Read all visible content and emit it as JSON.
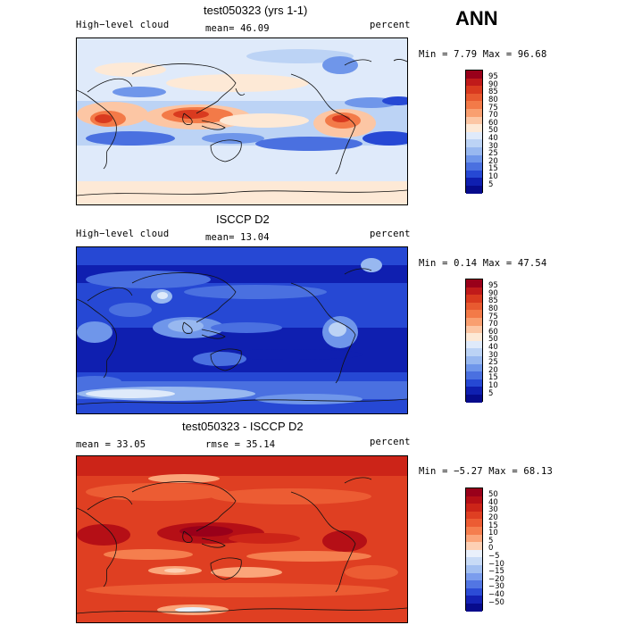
{
  "ann_label": "ANN",
  "panels": [
    {
      "title": "test050323 (yrs 1-1)",
      "left_label": "High−level cloud",
      "center_label": "mean=  46.09",
      "right_label": "percent",
      "minmax": "Min =   7.79 Max =  96.68",
      "colorbar_labels": [
        "95",
        "90",
        "85",
        "80",
        "75",
        "70",
        "60",
        "50",
        "40",
        "30",
        "25",
        "20",
        "15",
        "10",
        "5"
      ],
      "colorbar_colors": [
        "#99001a",
        "#c01a1a",
        "#d93a1f",
        "#e85a30",
        "#f37a48",
        "#f99f70",
        "#fcc6a4",
        "#fde9d6",
        "#dfeafa",
        "#bcd3f5",
        "#98b8f0",
        "#6f96ea",
        "#4a70e0",
        "#2648d4",
        "#0f1fb0",
        "#060b8c"
      ]
    },
    {
      "title": "ISCCP D2",
      "left_label": "High−level cloud",
      "center_label": "mean=  13.04",
      "right_label": "percent",
      "minmax": "Min =   0.14 Max =  47.54",
      "colorbar_labels": [
        "95",
        "90",
        "85",
        "80",
        "75",
        "70",
        "60",
        "50",
        "40",
        "30",
        "25",
        "20",
        "15",
        "10",
        "5"
      ],
      "colorbar_colors": [
        "#99001a",
        "#c01a1a",
        "#d93a1f",
        "#e85a30",
        "#f37a48",
        "#f99f70",
        "#fcc6a4",
        "#fde9d6",
        "#dfeafa",
        "#bcd3f5",
        "#98b8f0",
        "#6f96ea",
        "#4a70e0",
        "#2648d4",
        "#0f1fb0",
        "#060b8c"
      ]
    },
    {
      "title": "test050323 - ISCCP D2",
      "left_label": "mean =  33.05",
      "center_label": "rmse =  35.14",
      "right_label": "percent",
      "minmax": "Min =  −5.27 Max =  68.13",
      "colorbar_labels": [
        "50",
        "40",
        "30",
        "20",
        "15",
        "10",
        "5",
        "0",
        "−5",
        "−10",
        "−15",
        "−20",
        "−30",
        "−40",
        "−50"
      ],
      "colorbar_colors": [
        "#99001a",
        "#b50f16",
        "#cc2418",
        "#df3f22",
        "#ec5c33",
        "#f57e4e",
        "#fba57a",
        "#fdd0b4",
        "#e9f0fb",
        "#c8dbf6",
        "#a3c0f1",
        "#7b9ded",
        "#5276e3",
        "#2c4cd6",
        "#1422b4",
        "#070b8c"
      ]
    }
  ],
  "chart_data": [
    {
      "type": "heatmap",
      "title": "test050323 (yrs 1-1)",
      "variable": "High-level cloud",
      "units": "percent",
      "mean": 46.09,
      "min": 7.79,
      "max": 96.68,
      "colorbar_levels": [
        5,
        10,
        15,
        20,
        25,
        30,
        40,
        50,
        60,
        70,
        75,
        80,
        85,
        90,
        95
      ],
      "lon_range": [
        0,
        360
      ],
      "lat_range": [
        -90,
        90
      ]
    },
    {
      "type": "heatmap",
      "title": "ISCCP D2",
      "variable": "High-level cloud",
      "units": "percent",
      "mean": 13.04,
      "min": 0.14,
      "max": 47.54,
      "colorbar_levels": [
        5,
        10,
        15,
        20,
        25,
        30,
        40,
        50,
        60,
        70,
        75,
        80,
        85,
        90,
        95
      ],
      "lon_range": [
        0,
        360
      ],
      "lat_range": [
        -90,
        90
      ]
    },
    {
      "type": "heatmap",
      "title": "test050323 - ISCCP D2",
      "units": "percent",
      "mean": 33.05,
      "rmse": 35.14,
      "min": -5.27,
      "max": 68.13,
      "colorbar_levels": [
        -50,
        -40,
        -30,
        -20,
        -15,
        -10,
        -5,
        0,
        5,
        10,
        15,
        20,
        30,
        40,
        50
      ],
      "lon_range": [
        0,
        360
      ],
      "lat_range": [
        -90,
        90
      ]
    }
  ]
}
